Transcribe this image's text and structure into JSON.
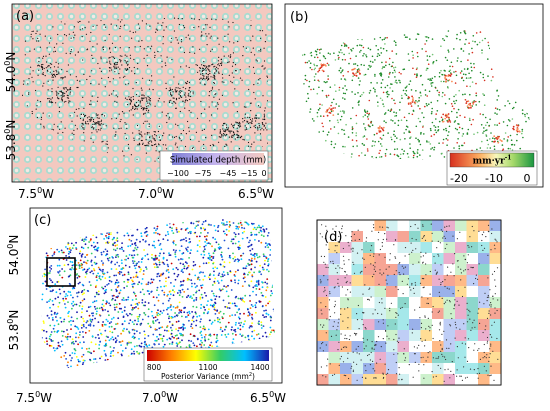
{
  "panels": {
    "a": {
      "label": "(a)",
      "colorbar_title": "Simulated depth (mm)",
      "colorbar_ticks": [
        "−100",
        "−75",
        "−45",
        "−15",
        "0"
      ],
      "y_ticks": [
        "54.0",
        "53.8"
      ],
      "y_unit": "N",
      "x_ticks": [
        "7.5",
        "7.0",
        "6.5"
      ],
      "x_unit": "W"
    },
    "b": {
      "label": "(b)",
      "colorbar_title": "mm·yr",
      "colorbar_title_sup": "-1",
      "colorbar_ticks": [
        "-20",
        "-10",
        "0"
      ]
    },
    "c": {
      "label": "(c)",
      "colorbar_title": "Posterior Variance (mm",
      "colorbar_title_sup": "2",
      "colorbar_title_end": ")",
      "colorbar_ticks": [
        "800",
        "1100",
        "1400"
      ],
      "y_ticks": [
        "54.0",
        "53.8"
      ],
      "y_unit": "N",
      "x_ticks": [
        "7.5",
        "7.0",
        "6.5"
      ],
      "x_unit": "W"
    },
    "d": {
      "label": "(d)"
    }
  },
  "degree_symbol": "0",
  "colors": {
    "a_background": "#f3c9c0",
    "a_circles": "#a9dcd0",
    "b_green": "#1f8a2a",
    "b_red": "#d7301f",
    "frame": "#000000"
  }
}
